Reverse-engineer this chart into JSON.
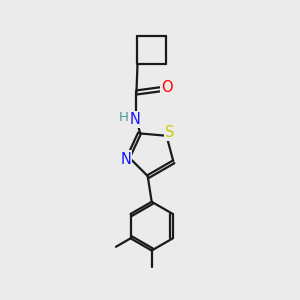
{
  "background_color": "#ebebeb",
  "bond_color": "#1a1a1a",
  "atom_colors": {
    "O": "#ff0000",
    "N": "#1414ff",
    "S": "#cccc00",
    "H": "#4a9a9a",
    "C": "#1a1a1a"
  },
  "bond_width": 1.6,
  "font_size": 10.5
}
